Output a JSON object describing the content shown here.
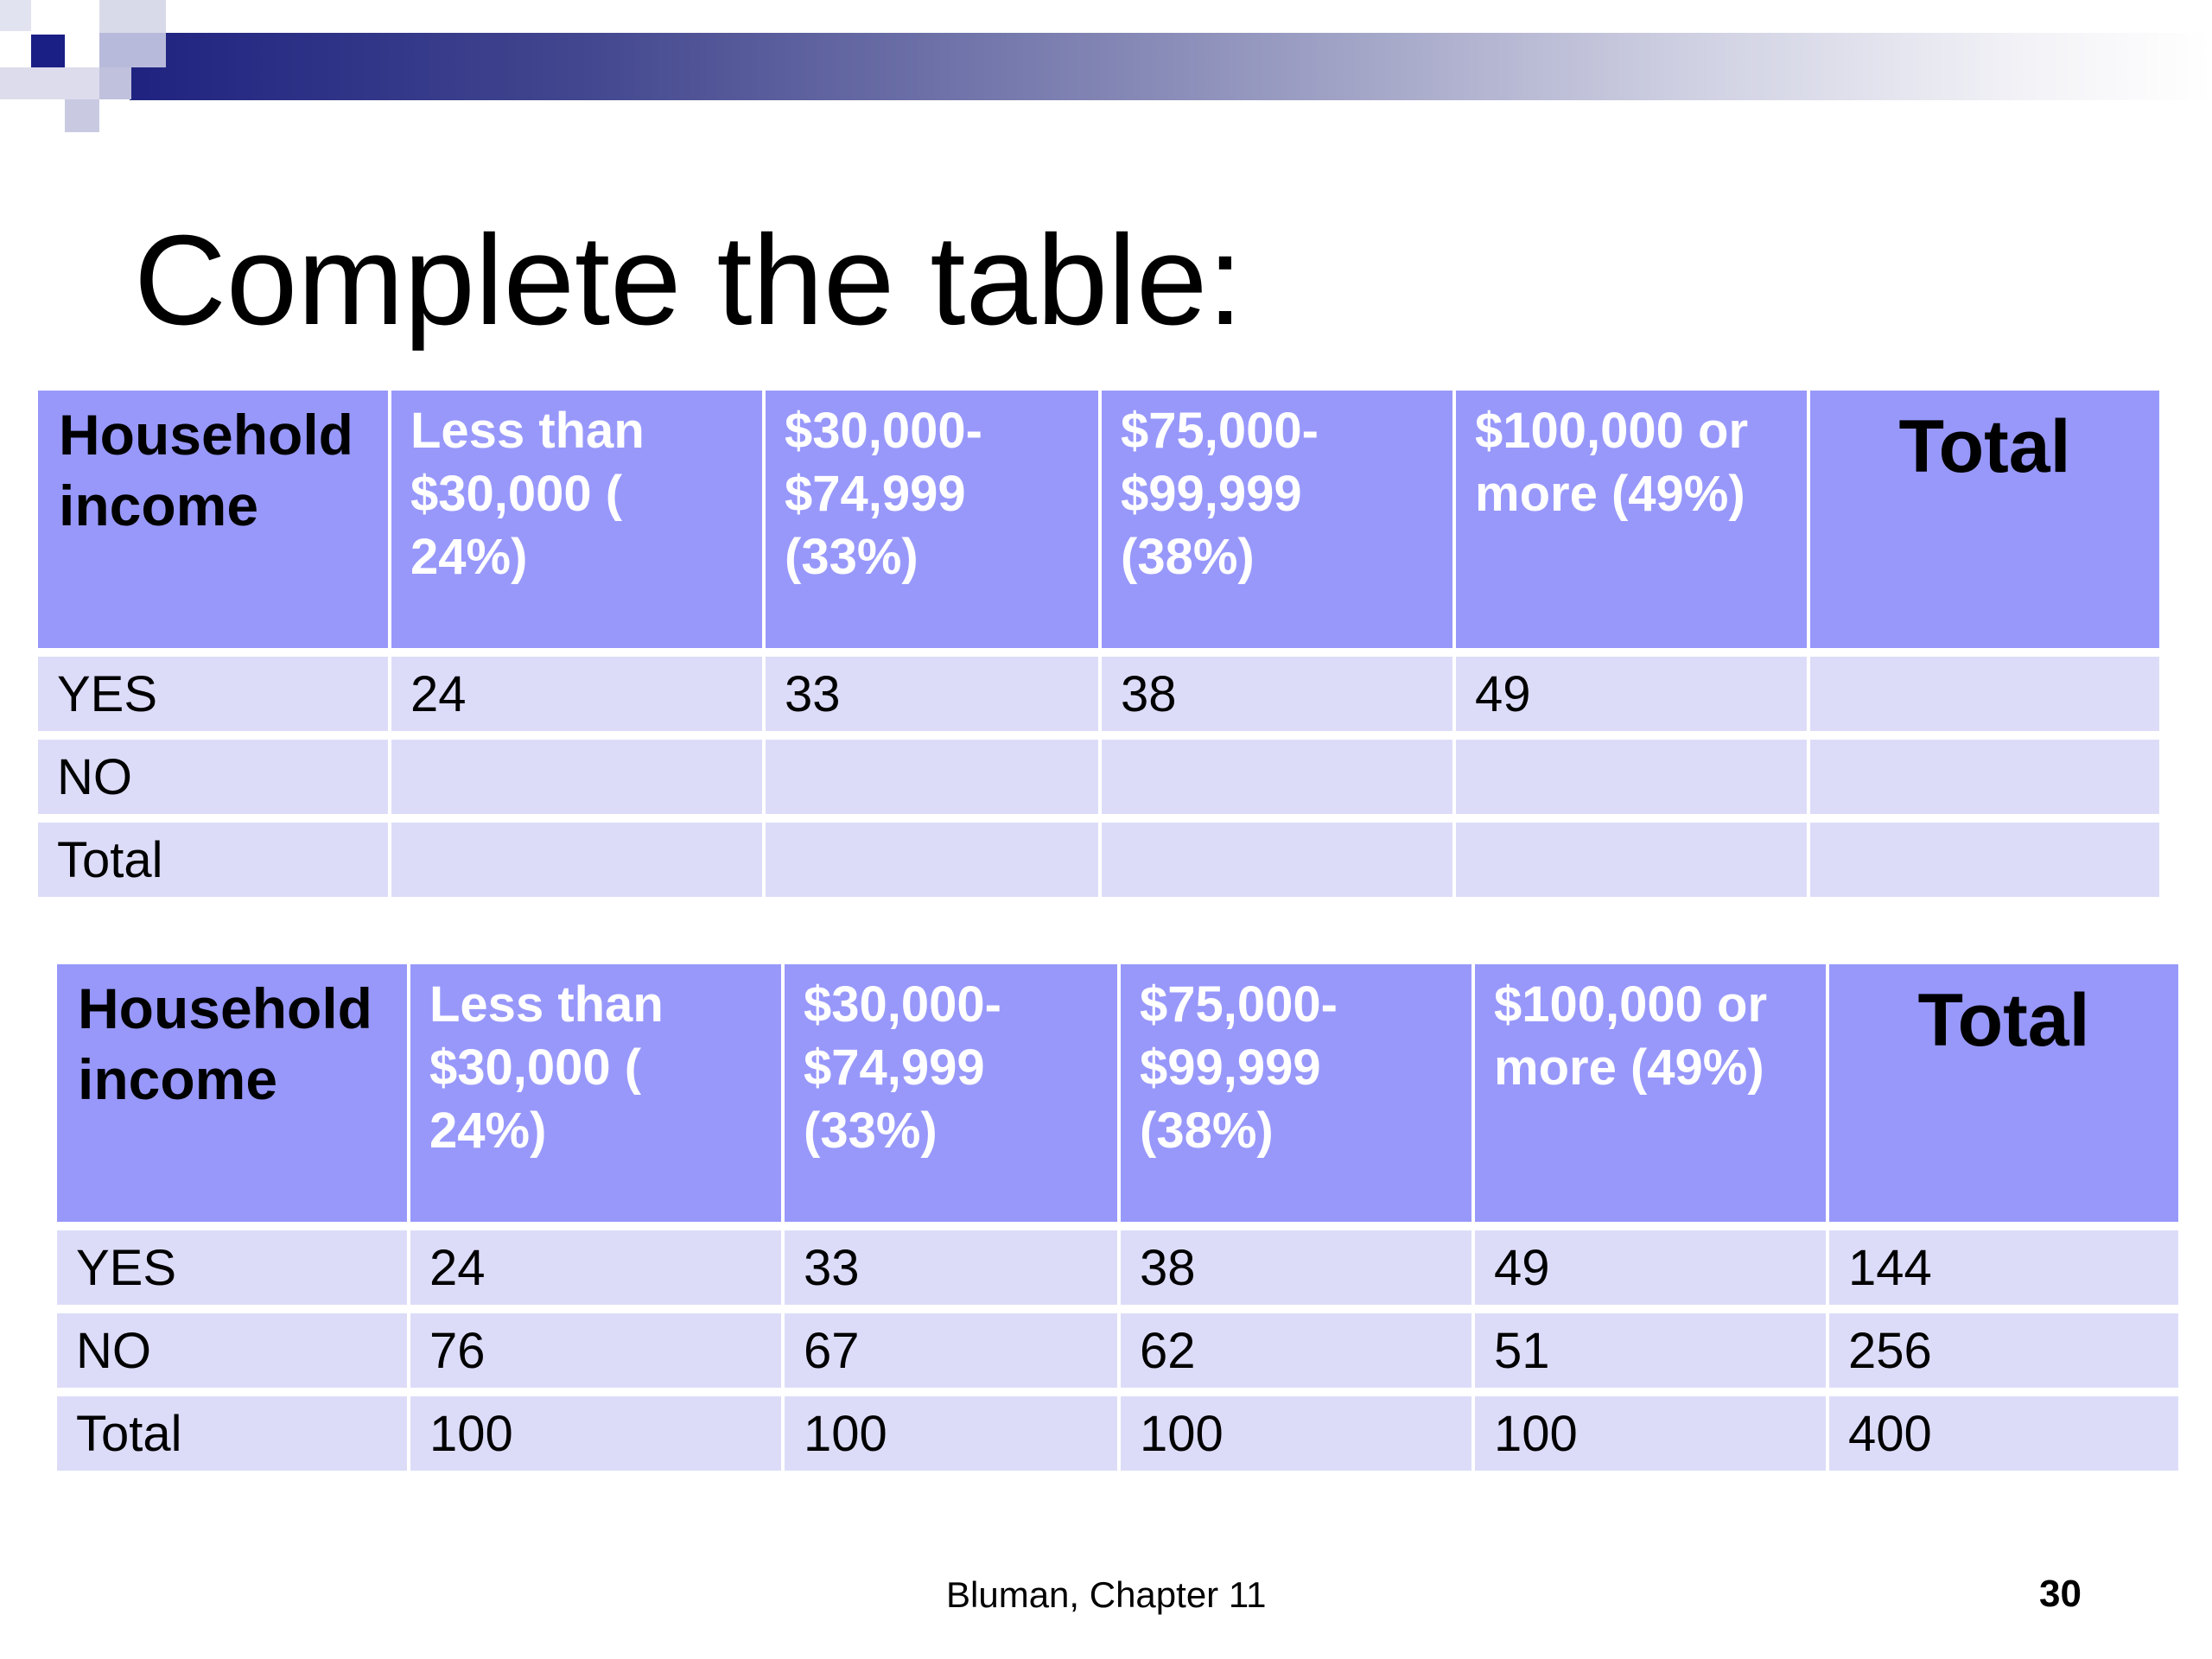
{
  "slide": {
    "title": "Complete the table:",
    "footer": "Bluman, Chapter 11",
    "page_number": "30"
  },
  "table1": {
    "headers": [
      "Household income",
      "Less than $30,000 ( 24%)",
      "$30,000- $74,999 (33%)",
      "$75,000- $99,999 (38%)",
      "$100,000 or more (49%)",
      "Total"
    ],
    "rows": [
      [
        "YES",
        "24",
        "33",
        "38",
        "49",
        ""
      ],
      [
        "NO",
        "",
        "",
        "",
        "",
        ""
      ],
      [
        "Total",
        "",
        "",
        "",
        "",
        ""
      ]
    ]
  },
  "table2": {
    "headers": [
      "Household income",
      "Less than $30,000 ( 24%)",
      "$30,000- $74,999 (33%)",
      "$75,000- $99,999 (38%)",
      "$100,000 or more (49%)",
      "Total"
    ],
    "rows": [
      [
        "YES",
        "24",
        "33",
        "38",
        "49",
        "144"
      ],
      [
        "NO",
        "76",
        "67",
        "62",
        "51",
        "256"
      ],
      [
        "Total",
        "100",
        "100",
        "100",
        "100",
        "400"
      ]
    ]
  },
  "colors": {
    "header_fill": "#9898fb",
    "row_fill": "#dcdcf9",
    "header_text_light": "#ffffff",
    "header_text_dark": "#000000",
    "banner_dark": "#1f2380"
  }
}
